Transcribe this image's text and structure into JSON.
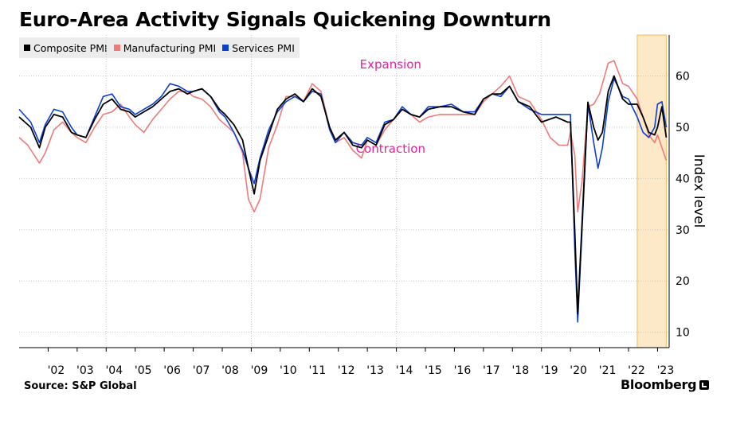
{
  "title": "Euro-Area Activity Signals Quickening Downturn",
  "source": "Source: S&P Global",
  "brand": "Bloomberg",
  "colors": {
    "composite": "#000000",
    "manufacturing": "#f07a7a",
    "services": "#0b3fd0",
    "highlight": "#fde9c8",
    "highlight_border": "#f3b85a",
    "annotation": "#e3239a",
    "grid": "#c8c8c8"
  },
  "chart_data": {
    "type": "line",
    "ylabel": "Index level",
    "ylim": [
      7,
      68
    ],
    "xlim": [
      2001.0,
      2023.4
    ],
    "yticks": [
      10,
      20,
      30,
      40,
      50,
      60
    ],
    "xtick_labels": [
      "'02",
      "'03",
      "'04",
      "'05",
      "'06",
      "'07",
      "'08",
      "'09",
      "'10",
      "'11",
      "'12",
      "'13",
      "'14",
      "'15",
      "'16",
      "'17",
      "'18",
      "'19",
      "'20",
      "'21",
      "'22",
      "'23"
    ],
    "xtick_values": [
      2002,
      2003,
      2004,
      2005,
      2006,
      2007,
      2008,
      2009,
      2010,
      2011,
      2012,
      2013,
      2014,
      2015,
      2016,
      2017,
      2018,
      2019,
      2020,
      2021,
      2022,
      2023
    ],
    "annotations": [
      {
        "text": "Expansion",
        "x": 2013.8,
        "y": 61.5
      },
      {
        "text": "Contraction",
        "x": 2013.8,
        "y": 45.0
      }
    ],
    "highlight_range": [
      2022.3,
      2023.3
    ],
    "series": [
      {
        "name": "Composite PMI",
        "key": "composite",
        "x": [
          2001.0,
          2001.4,
          2001.7,
          2001.9,
          2002.2,
          2002.5,
          2002.8,
          2003.0,
          2003.3,
          2003.6,
          2003.9,
          2004.2,
          2004.5,
          2004.8,
          2005.0,
          2005.3,
          2005.6,
          2005.9,
          2006.2,
          2006.5,
          2006.8,
          2007.0,
          2007.3,
          2007.6,
          2007.9,
          2008.1,
          2008.4,
          2008.7,
          2008.9,
          2009.1,
          2009.3,
          2009.6,
          2009.9,
          2010.2,
          2010.5,
          2010.8,
          2011.1,
          2011.4,
          2011.7,
          2011.9,
          2012.2,
          2012.5,
          2012.8,
          2013.0,
          2013.3,
          2013.6,
          2013.9,
          2014.2,
          2014.5,
          2014.8,
          2015.1,
          2015.5,
          2015.9,
          2016.3,
          2016.7,
          2017.0,
          2017.3,
          2017.6,
          2017.9,
          2018.2,
          2018.6,
          2019.0,
          2019.5,
          2019.9,
          2020.0,
          2020.15,
          2020.25,
          2020.4,
          2020.6,
          2020.8,
          2020.95,
          2021.1,
          2021.3,
          2021.5,
          2021.8,
          2022.0,
          2022.3,
          2022.5,
          2022.7,
          2022.9,
          2023.0,
          2023.15,
          2023.3
        ],
        "values": [
          52.0,
          50.0,
          46.0,
          50.0,
          52.5,
          52.0,
          49.0,
          48.5,
          48.0,
          51.5,
          54.5,
          55.5,
          53.5,
          53.0,
          52.0,
          53.0,
          54.0,
          55.5,
          57.0,
          57.5,
          56.5,
          57.0,
          57.5,
          56.0,
          53.5,
          52.5,
          50.5,
          47.5,
          42.0,
          37.0,
          43.5,
          48.5,
          53.5,
          55.5,
          56.5,
          55.0,
          57.5,
          56.0,
          50.0,
          47.5,
          49.0,
          46.5,
          46.0,
          47.5,
          46.5,
          50.5,
          51.5,
          53.5,
          52.5,
          52.0,
          53.5,
          54.0,
          54.0,
          53.0,
          52.5,
          55.5,
          56.5,
          56.5,
          58.0,
          55.0,
          54.0,
          51.0,
          52.0,
          51.0,
          51.0,
          29.5,
          13.6,
          31.5,
          54.9,
          50.0,
          47.5,
          49.0,
          57.0,
          60.0,
          55.5,
          54.5,
          54.5,
          52.0,
          49.0,
          48.5,
          50.0,
          54.0,
          48.0
        ]
      },
      {
        "name": "Manufacturing PMI",
        "key": "manufacturing",
        "x": [
          2001.0,
          2001.3,
          2001.7,
          2001.9,
          2002.2,
          2002.5,
          2002.8,
          2003.0,
          2003.3,
          2003.6,
          2003.9,
          2004.2,
          2004.5,
          2004.8,
          2005.0,
          2005.3,
          2005.6,
          2005.9,
          2006.2,
          2006.5,
          2006.8,
          2007.0,
          2007.3,
          2007.6,
          2007.9,
          2008.1,
          2008.4,
          2008.7,
          2008.9,
          2009.1,
          2009.3,
          2009.6,
          2009.9,
          2010.2,
          2010.5,
          2010.8,
          2011.1,
          2011.4,
          2011.7,
          2011.9,
          2012.2,
          2012.5,
          2012.8,
          2013.0,
          2013.3,
          2013.6,
          2013.9,
          2014.2,
          2014.5,
          2014.8,
          2015.1,
          2015.5,
          2015.9,
          2016.3,
          2016.7,
          2017.0,
          2017.3,
          2017.6,
          2017.9,
          2018.2,
          2018.6,
          2019.0,
          2019.3,
          2019.6,
          2019.9,
          2020.0,
          2020.15,
          2020.25,
          2020.4,
          2020.6,
          2020.8,
          2021.0,
          2021.3,
          2021.5,
          2021.8,
          2022.0,
          2022.3,
          2022.5,
          2022.7,
          2022.9,
          2023.0,
          2023.15,
          2023.3
        ],
        "values": [
          48.0,
          46.5,
          43.0,
          45.0,
          49.5,
          51.0,
          49.0,
          48.0,
          47.0,
          50.0,
          52.5,
          53.0,
          54.5,
          52.0,
          50.5,
          49.0,
          51.5,
          53.5,
          55.5,
          57.0,
          57.0,
          56.0,
          55.5,
          54.0,
          51.5,
          50.5,
          49.0,
          45.0,
          36.0,
          33.5,
          36.0,
          46.0,
          50.5,
          56.0,
          56.0,
          55.0,
          58.5,
          57.0,
          50.0,
          47.0,
          48.0,
          45.5,
          44.0,
          47.5,
          46.5,
          49.5,
          51.5,
          53.5,
          52.5,
          51.0,
          52.0,
          52.5,
          52.5,
          52.5,
          52.5,
          55.0,
          56.5,
          58.0,
          60.0,
          56.0,
          55.0,
          51.5,
          48.0,
          46.5,
          46.5,
          49.0,
          44.5,
          33.5,
          39.5,
          54.0,
          54.5,
          56.5,
          62.5,
          63.0,
          58.5,
          58.0,
          55.5,
          52.0,
          48.5,
          47.0,
          48.5,
          46.0,
          43.5
        ]
      },
      {
        "name": "Services PMI",
        "key": "services",
        "x": [
          2001.0,
          2001.4,
          2001.7,
          2001.9,
          2002.2,
          2002.5,
          2002.8,
          2003.0,
          2003.3,
          2003.6,
          2003.9,
          2004.2,
          2004.5,
          2004.8,
          2005.0,
          2005.3,
          2005.6,
          2005.9,
          2006.2,
          2006.5,
          2006.8,
          2007.0,
          2007.3,
          2007.6,
          2007.9,
          2008.1,
          2008.4,
          2008.7,
          2008.9,
          2009.1,
          2009.3,
          2009.6,
          2009.9,
          2010.2,
          2010.5,
          2010.8,
          2011.1,
          2011.4,
          2011.7,
          2011.9,
          2012.2,
          2012.5,
          2012.8,
          2013.0,
          2013.3,
          2013.6,
          2013.9,
          2014.2,
          2014.5,
          2014.8,
          2015.1,
          2015.5,
          2015.9,
          2016.3,
          2016.7,
          2017.0,
          2017.3,
          2017.6,
          2017.9,
          2018.2,
          2018.6,
          2019.0,
          2019.5,
          2019.9,
          2020.0,
          2020.15,
          2020.25,
          2020.4,
          2020.6,
          2020.8,
          2020.95,
          2021.1,
          2021.3,
          2021.5,
          2021.8,
          2022.0,
          2022.3,
          2022.5,
          2022.7,
          2022.9,
          2023.0,
          2023.15,
          2023.3
        ],
        "values": [
          53.5,
          51.0,
          47.0,
          50.5,
          53.5,
          53.0,
          50.0,
          48.5,
          48.0,
          52.0,
          56.0,
          56.5,
          54.0,
          53.5,
          52.5,
          53.5,
          54.5,
          56.0,
          58.5,
          58.0,
          57.0,
          57.0,
          57.5,
          56.0,
          53.0,
          52.0,
          49.0,
          45.5,
          42.0,
          39.0,
          44.0,
          49.5,
          53.0,
          55.0,
          56.0,
          55.0,
          57.0,
          56.5,
          49.5,
          47.0,
          49.0,
          47.0,
          46.5,
          48.0,
          47.0,
          51.0,
          51.5,
          54.0,
          52.5,
          52.0,
          54.0,
          54.0,
          54.5,
          53.0,
          53.0,
          55.5,
          56.5,
          56.0,
          58.0,
          55.0,
          53.5,
          52.5,
          52.5,
          52.5,
          52.5,
          26.0,
          12.0,
          30.0,
          54.5,
          47.0,
          42.0,
          46.0,
          55.0,
          59.5,
          56.0,
          55.5,
          52.0,
          49.0,
          48.0,
          50.0,
          54.5,
          55.0,
          50.0
        ]
      }
    ]
  }
}
